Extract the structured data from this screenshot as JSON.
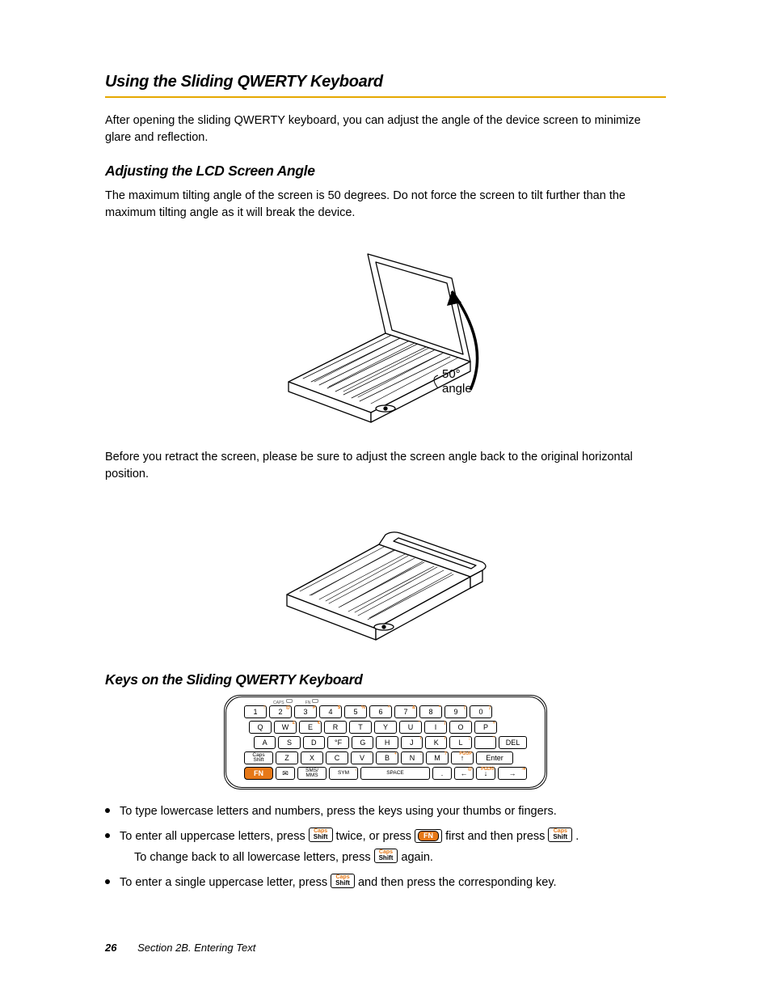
{
  "accent_rule_color": "#e6a800",
  "key_accent_color": "#e67817",
  "title": "Using the Sliding QWERTY Keyboard",
  "intro": "After opening the sliding QWERTY keyboard, you can adjust the angle of the device screen to minimize glare and reflection.",
  "section_a": {
    "heading": "Adjusting the LCD Screen Angle",
    "para": "The maximum tilting angle of the screen is 50 degrees. Do not force the screen to tilt further than the maximum tilting angle as it will break the device.",
    "angle_label_deg": "50°",
    "angle_label_text": "angle",
    "para2": "Before you retract the screen, please be sure to adjust the screen angle back to the original horizontal position."
  },
  "section_b": {
    "heading": "Keys on the Sliding QWERTY Keyboard",
    "led_labels": [
      "CAPS",
      "FN"
    ],
    "rows": [
      [
        {
          "main": "1",
          "sup": "!"
        },
        {
          "main": "2",
          "sup": "@"
        },
        {
          "main": "3",
          "sup": "#"
        },
        {
          "main": "4",
          "sup": "$"
        },
        {
          "main": "5",
          "sup": "%"
        },
        {
          "main": "6",
          "sup": "^"
        },
        {
          "main": "7",
          "sup": "&"
        },
        {
          "main": "8",
          "sup": "*"
        },
        {
          "main": "9",
          "sup": "("
        },
        {
          "main": "0",
          "sup": ")"
        }
      ],
      [
        {
          "main": "Q"
        },
        {
          "main": "W",
          "sup": "£"
        },
        {
          "main": "E",
          "sup": "€"
        },
        {
          "main": "R"
        },
        {
          "main": "T"
        },
        {
          "main": "Y"
        },
        {
          "main": "U",
          "sup": "\""
        },
        {
          "main": "I",
          "sup": "|"
        },
        {
          "main": "O",
          "sup": "'"
        },
        {
          "main": "P",
          "sup": "="
        }
      ],
      [
        {
          "main": "A"
        },
        {
          "main": "S"
        },
        {
          "main": "D"
        },
        {
          "main": "°F",
          "sup": ""
        },
        {
          "main": "G"
        },
        {
          "main": "H"
        },
        {
          "main": "J",
          "sup": "\\"
        },
        {
          "main": "K",
          "sup": "/"
        },
        {
          "main": "L",
          "sup": ";"
        },
        {
          "main": "",
          "sup": "\""
        },
        {
          "main": "DEL",
          "sup": "",
          "wide": "m"
        }
      ],
      [
        {
          "main": "Caps\nShift",
          "wide": "m",
          "small": true
        },
        {
          "main": "Z"
        },
        {
          "main": "X"
        },
        {
          "main": "C"
        },
        {
          "main": "V",
          "sup": "-"
        },
        {
          "main": "B",
          "sup": "+"
        },
        {
          "main": "N",
          "sup": ":"
        },
        {
          "main": "M",
          "sup": "?"
        },
        {
          "main": "↑",
          "sup": "PGUP"
        },
        {
          "main": "Enter",
          "wide": "l"
        }
      ],
      [
        {
          "main": "FN",
          "fn": true,
          "wide": "m"
        },
        {
          "main": "✉",
          "wide": "s"
        },
        {
          "main": "SMS/\nMMS",
          "wide": "m",
          "small": true
        },
        {
          "main": "SYM",
          "sup": ",",
          "wide": "m",
          "small": true
        },
        {
          "main": "SPACE",
          "wide": "space",
          "small": true
        },
        {
          "main": ".",
          "wide": "s"
        },
        {
          "main": "←",
          "sup": "@",
          "wide": "s"
        },
        {
          "main": "↓",
          "sup": "PGDN",
          "wide": "s"
        },
        {
          "main": "→",
          "sup": "⇥",
          "wide": "m"
        }
      ]
    ]
  },
  "bullets": {
    "b1": "To type lowercase letters and numbers, press the keys using your thumbs or fingers.",
    "b2_a": "To enter all uppercase letters, press ",
    "b2_b": " twice, or press ",
    "b2_c": " first and then press ",
    "b2_d": ".",
    "b2_line2_a": "To change back to all lowercase letters, press ",
    "b2_line2_b": " again.",
    "b3_a": "To enter a single uppercase letter, press ",
    "b3_b": " and then press the corresponding key."
  },
  "keycaps": {
    "caps": "Caps",
    "shift": "Shift",
    "fn": "FN"
  },
  "footer": {
    "page_number": "26",
    "section_label": "Section 2B. Entering Text"
  }
}
